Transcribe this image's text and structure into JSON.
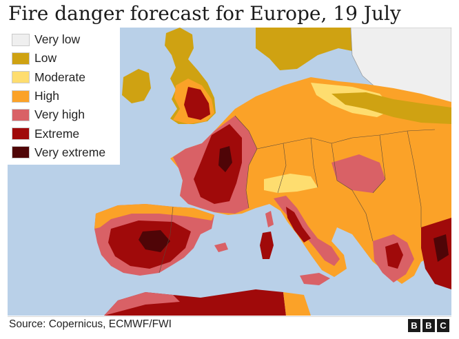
{
  "title": "Fire danger forecast for Europe, 19 July",
  "legend": [
    {
      "label": "Very low",
      "color": "#efefef"
    },
    {
      "label": "Low",
      "color": "#cfa212"
    },
    {
      "label": "Moderate",
      "color": "#fedd6f"
    },
    {
      "label": "High",
      "color": "#fba228"
    },
    {
      "label": "Very high",
      "color": "#d96166"
    },
    {
      "label": "Extreme",
      "color": "#a00a0a"
    },
    {
      "label": "Very extreme",
      "color": "#4f0507"
    }
  ],
  "map": {
    "sea_color": "#b9d0e8",
    "border_color": "#5a4a3a"
  },
  "footer": {
    "source": "Source: Copernicus, ECMWF/FWI",
    "logo_letters": [
      "B",
      "B",
      "C"
    ]
  }
}
